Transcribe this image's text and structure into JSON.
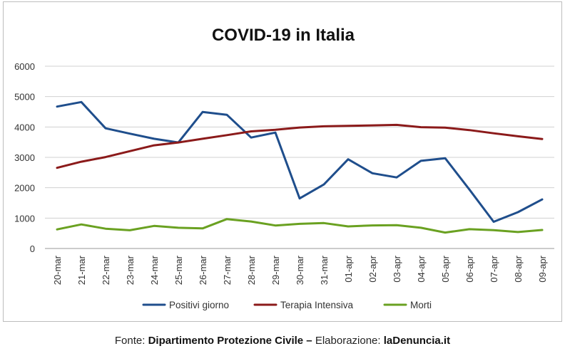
{
  "chart_data": {
    "type": "line",
    "title": "COVID-19 in Italia",
    "xlabel": "",
    "ylabel": "",
    "ylim": [
      0,
      6000
    ],
    "yticks": [
      0,
      1000,
      2000,
      3000,
      4000,
      5000,
      6000
    ],
    "grid": true,
    "legend": "bottom",
    "categories": [
      "20-mar",
      "21-mar",
      "22-mar",
      "23-mar",
      "24-mar",
      "25-mar",
      "26-mar",
      "27-mar",
      "28-mar",
      "29-mar",
      "30-mar",
      "31-mar",
      "01-apr",
      "02-apr",
      "03-apr",
      "04-apr",
      "05-apr",
      "06-apr",
      "07-apr",
      "08-apr",
      "09-apr"
    ],
    "series": [
      {
        "name": "Positivi giorno",
        "color": "#1f4e8c",
        "values": [
          4670,
          4821,
          3957,
          3780,
          3612,
          3491,
          4492,
          4401,
          3651,
          3815,
          1648,
          2107,
          2937,
          2477,
          2339,
          2886,
          2972,
          1941,
          880,
          1195,
          1615
        ]
      },
      {
        "name": "Terapia Intensiva",
        "color": "#8b1a1a",
        "values": [
          2655,
          2857,
          3009,
          3204,
          3396,
          3489,
          3612,
          3732,
          3856,
          3906,
          3981,
          4023,
          4035,
          4053,
          4068,
          3994,
          3977,
          3898,
          3792,
          3693,
          3605
        ]
      },
      {
        "name": "Morti",
        "color": "#6aa121",
        "values": [
          627,
          793,
          651,
          601,
          743,
          683,
          662,
          969,
          889,
          756,
          812,
          837,
          727,
          760,
          766,
          681,
          525,
          636,
          604,
          542,
          610
        ]
      }
    ]
  },
  "footer": {
    "prefix": "Fonte: ",
    "source": "Dipartimento Protezione Civile",
    "dash": " – ",
    "elab_label": "Elaborazione: ",
    "elab_value": "laDenuncia.it"
  }
}
